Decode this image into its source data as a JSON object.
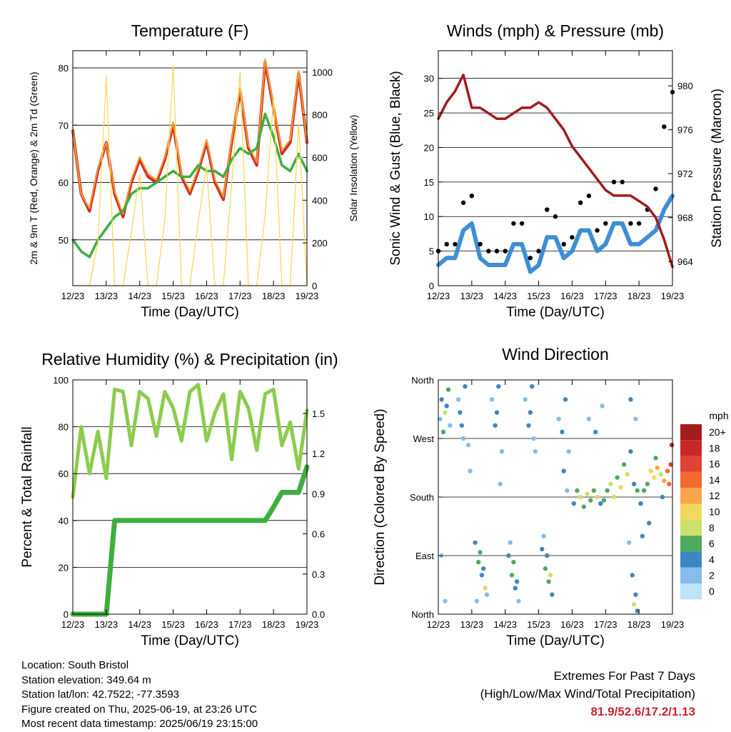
{
  "days": [
    "12/23",
    "13/23",
    "14/23",
    "15/23",
    "16/23",
    "17/23",
    "18/23",
    "19/23"
  ],
  "xlabel": "Time (Day/UTC)",
  "colors": {
    "temp2m": "#d42a26",
    "temp9m": "#f59a2e",
    "dew": "#3fae3f",
    "solar": "#f5dc5a",
    "sonic": "#3e8ed6",
    "gust": "#000000",
    "pressure": "#a01c1c",
    "rh": "#8ccc4e",
    "precip": "#3fae3f",
    "extremes": "#c4262e"
  },
  "chart_data": [
    {
      "type": "line",
      "title": "Temperature (F)",
      "ylabel": "2m & 9m T (Red, Orange) & 2m Td (Green)",
      "ylabel_right": "Solar Insolation (Yellow)",
      "xlabel": "Time (Day/UTC)",
      "x": [
        12.0,
        12.25,
        12.5,
        12.75,
        13.0,
        13.25,
        13.5,
        13.75,
        14.0,
        14.25,
        14.5,
        14.75,
        15.0,
        15.25,
        15.5,
        15.75,
        16.0,
        16.25,
        16.5,
        16.75,
        17.0,
        17.25,
        17.5,
        17.75,
        18.0,
        18.25,
        18.5,
        18.75,
        19.0
      ],
      "ylim": [
        42,
        83
      ],
      "yticks": [
        50,
        60,
        70,
        80
      ],
      "ylim_right": [
        0,
        1100
      ],
      "yticks_right": [
        0,
        200,
        400,
        600,
        800,
        1000
      ],
      "grid": "horizontal",
      "series": [
        {
          "key": "t2m",
          "axis": "left",
          "values": [
            69,
            58,
            55,
            62,
            67,
            58,
            54,
            60,
            64,
            61,
            60,
            64,
            70,
            61,
            58,
            62,
            67,
            60,
            57,
            67,
            76,
            66,
            63,
            81,
            73,
            65,
            67,
            79,
            67
          ]
        },
        {
          "key": "t9m",
          "axis": "left",
          "values": [
            69,
            58,
            55.5,
            62.5,
            67,
            58.5,
            54.5,
            60.5,
            64.5,
            61.5,
            60.5,
            64.5,
            70.5,
            61.5,
            58.5,
            62.5,
            67.5,
            60.5,
            57.5,
            67.5,
            76.5,
            66.5,
            63.5,
            81.5,
            73.5,
            65.5,
            67.5,
            79.5,
            67
          ]
        },
        {
          "key": "td2m",
          "axis": "left",
          "values": [
            50,
            48,
            47,
            50,
            52,
            54,
            55,
            58,
            59,
            59,
            60,
            61,
            62,
            61,
            61,
            63,
            62,
            62,
            61,
            64,
            66,
            65,
            66,
            72,
            68,
            63,
            62,
            65,
            62
          ]
        },
        {
          "key": "solar",
          "axis": "right",
          "values": [
            0,
            0,
            0,
            200,
            980,
            0,
            0,
            250,
            520,
            0,
            0,
            310,
            1030,
            0,
            0,
            300,
            560,
            0,
            0,
            480,
            1000,
            0,
            0,
            330,
            880,
            0,
            0,
            760,
            0
          ]
        }
      ]
    },
    {
      "type": "line",
      "title": "Winds (mph) & Pressure (mb)",
      "ylabel": "Sonic Wind & Gust (Blue, Black)",
      "ylabel_right": "Station Pressure (Maroon)",
      "xlabel": "Time (Day/UTC)",
      "x": [
        12.0,
        12.25,
        12.5,
        12.75,
        13.0,
        13.25,
        13.5,
        13.75,
        14.0,
        14.25,
        14.5,
        14.75,
        15.0,
        15.25,
        15.5,
        15.75,
        16.0,
        16.25,
        16.5,
        16.75,
        17.0,
        17.25,
        17.5,
        17.75,
        18.0,
        18.25,
        18.5,
        18.75,
        19.0
      ],
      "ylim": [
        0,
        34
      ],
      "yticks": [
        0,
        5,
        10,
        15,
        20,
        25,
        30
      ],
      "ylim_right": [
        961.8,
        983.2
      ],
      "yticks_right": [
        964,
        968,
        972,
        976,
        980
      ],
      "grid": "horizontal",
      "series": [
        {
          "key": "wind",
          "axis": "left",
          "values": [
            3,
            4,
            4,
            8,
            9,
            4,
            3,
            3,
            3,
            6,
            6,
            2,
            3,
            7,
            7,
            4,
            5,
            8,
            8,
            5,
            6,
            9,
            9,
            6,
            6,
            7,
            8,
            11,
            13
          ]
        },
        {
          "key": "gust",
          "axis": "left",
          "values": [
            5,
            6,
            6,
            12,
            13,
            6,
            5,
            5,
            5,
            9,
            9,
            4,
            5,
            11,
            10,
            6,
            7,
            12,
            13,
            8,
            9,
            15,
            15,
            9,
            9,
            11,
            14,
            23,
            28
          ]
        },
        {
          "key": "pressure",
          "axis": "right",
          "values": [
            977,
            978.5,
            979.5,
            981,
            978,
            978,
            977.5,
            977,
            977,
            977.5,
            978,
            978,
            978.5,
            978,
            977,
            976,
            974.5,
            973.5,
            972.5,
            971.5,
            970.5,
            970,
            970,
            970,
            969.5,
            969,
            968,
            966,
            963.5
          ]
        }
      ]
    },
    {
      "type": "line",
      "title": "Relative Humidity (%) & Precipitation (in)",
      "ylabel": "Percent & Total Rainfall",
      "xlabel": "Time (Day/UTC)",
      "x": [
        12.0,
        12.25,
        12.5,
        12.75,
        13.0,
        13.25,
        13.5,
        13.75,
        14.0,
        14.25,
        14.5,
        14.75,
        15.0,
        15.25,
        15.5,
        15.75,
        16.0,
        16.25,
        16.5,
        16.75,
        17.0,
        17.25,
        17.5,
        17.75,
        18.0,
        18.25,
        18.5,
        18.75,
        19.0
      ],
      "ylim": [
        0,
        100
      ],
      "yticks": [
        0,
        20,
        40,
        60,
        80,
        100
      ],
      "ylim_right": [
        0,
        1.75
      ],
      "yticks_right": [
        0.0,
        0.3,
        0.6,
        0.9,
        1.2,
        1.5
      ],
      "ytick_labels_right": [
        "0.0",
        "0.3",
        "0.6",
        "0.9",
        "1.2",
        "1.5"
      ],
      "grid": "horizontal",
      "series": [
        {
          "key": "rh",
          "axis": "left",
          "values": [
            50,
            80,
            60,
            78,
            58,
            96,
            95,
            72,
            95,
            92,
            76,
            95,
            88,
            74,
            95,
            98,
            74,
            86,
            94,
            66,
            95,
            88,
            70,
            94,
            96,
            72,
            82,
            62,
            87
          ]
        },
        {
          "key": "precip",
          "axis": "right",
          "values": [
            0,
            0,
            0,
            0,
            0,
            0.7,
            0.7,
            0.7,
            0.7,
            0.7,
            0.7,
            0.7,
            0.7,
            0.7,
            0.7,
            0.7,
            0.7,
            0.7,
            0.7,
            0.7,
            0.7,
            0.7,
            0.7,
            0.7,
            0.8,
            0.91,
            0.91,
            0.91,
            1.1
          ]
        }
      ]
    },
    {
      "type": "scatter",
      "title": "Wind Direction",
      "ylabel": "Direction (Colored By Speed)",
      "xlabel": "Time (Day/UTC)",
      "ylim": [
        0,
        360
      ],
      "yticks": [
        0,
        90,
        180,
        270,
        360
      ],
      "ytick_labels": [
        "North",
        "East",
        "South",
        "West",
        "North"
      ],
      "grid": "horizontal",
      "legend_title": "mph",
      "legend_labels": [
        "20+",
        "18",
        "16",
        "14",
        "12",
        "10",
        "8",
        "6",
        "4",
        "2",
        "0"
      ],
      "legend_colors": [
        "#a31c1c",
        "#c92828",
        "#e04434",
        "#f26a30",
        "#f9a54a",
        "#f2d85a",
        "#cde06a",
        "#4daa5e",
        "#3d86c4",
        "#85bde9",
        "#bde4f7"
      ],
      "legend_placement": "right",
      "points": [
        [
          12.05,
          300,
          2
        ],
        [
          12.1,
          330,
          4
        ],
        [
          12.15,
          280,
          6
        ],
        [
          12.2,
          310,
          7
        ],
        [
          12.25,
          320,
          3
        ],
        [
          12.3,
          345,
          5
        ],
        [
          12.35,
          290,
          2
        ],
        [
          12.1,
          90,
          1
        ],
        [
          12.2,
          20,
          2
        ],
        [
          12.6,
          330,
          2
        ],
        [
          12.7,
          290,
          4
        ],
        [
          12.8,
          350,
          3
        ],
        [
          12.9,
          260,
          2
        ],
        [
          12.95,
          220,
          1
        ],
        [
          12.65,
          310,
          3
        ],
        [
          12.75,
          270,
          2
        ],
        [
          13.1,
          110,
          3
        ],
        [
          13.2,
          80,
          6
        ],
        [
          13.3,
          60,
          4
        ],
        [
          13.4,
          40,
          7
        ],
        [
          13.25,
          95,
          5
        ],
        [
          13.35,
          70,
          3
        ],
        [
          13.15,
          20,
          2
        ],
        [
          13.45,
          30,
          1
        ],
        [
          13.6,
          330,
          2
        ],
        [
          13.7,
          290,
          4
        ],
        [
          13.8,
          350,
          3
        ],
        [
          13.9,
          250,
          2
        ],
        [
          13.75,
          310,
          3
        ],
        [
          13.85,
          200,
          1
        ],
        [
          14.1,
          90,
          3
        ],
        [
          14.2,
          60,
          5
        ],
        [
          14.3,
          40,
          4
        ],
        [
          14.4,
          20,
          2
        ],
        [
          14.25,
          80,
          6
        ],
        [
          14.15,
          110,
          2
        ],
        [
          14.35,
          50,
          3
        ],
        [
          14.6,
          330,
          2
        ],
        [
          14.7,
          290,
          4
        ],
        [
          14.8,
          350,
          3
        ],
        [
          14.9,
          250,
          2
        ],
        [
          14.75,
          310,
          3
        ],
        [
          14.85,
          270,
          1
        ],
        [
          15.1,
          100,
          3
        ],
        [
          15.2,
          70,
          6
        ],
        [
          15.3,
          50,
          5
        ],
        [
          15.4,
          30,
          3
        ],
        [
          15.25,
          90,
          4
        ],
        [
          15.15,
          120,
          2
        ],
        [
          15.35,
          60,
          7
        ],
        [
          15.6,
          300,
          2
        ],
        [
          15.7,
          280,
          4
        ],
        [
          15.8,
          330,
          3
        ],
        [
          15.9,
          250,
          2
        ],
        [
          15.75,
          220,
          3
        ],
        [
          15.85,
          190,
          1
        ],
        [
          16.05,
          170,
          4
        ],
        [
          16.15,
          190,
          6
        ],
        [
          16.25,
          180,
          8
        ],
        [
          16.35,
          165,
          5
        ],
        [
          16.45,
          185,
          7
        ],
        [
          16.55,
          175,
          6
        ],
        [
          16.65,
          190,
          5
        ],
        [
          16.75,
          180,
          8
        ],
        [
          16.85,
          170,
          4
        ],
        [
          16.95,
          175,
          6
        ],
        [
          16.5,
          300,
          2
        ],
        [
          16.7,
          280,
          3
        ],
        [
          16.9,
          320,
          2
        ],
        [
          17.05,
          190,
          5
        ],
        [
          17.15,
          200,
          7
        ],
        [
          17.25,
          180,
          8
        ],
        [
          17.35,
          210,
          6
        ],
        [
          17.45,
          195,
          9
        ],
        [
          17.55,
          230,
          6
        ],
        [
          17.65,
          215,
          7
        ],
        [
          17.75,
          250,
          3
        ],
        [
          17.85,
          200,
          4
        ],
        [
          17.95,
          190,
          6
        ],
        [
          17.7,
          110,
          2
        ],
        [
          17.8,
          60,
          4
        ],
        [
          17.9,
          30,
          3
        ],
        [
          17.85,
          15,
          8
        ],
        [
          17.95,
          5,
          4
        ],
        [
          17.75,
          330,
          3
        ],
        [
          17.9,
          300,
          2
        ],
        [
          18.05,
          170,
          3
        ],
        [
          18.15,
          190,
          5
        ],
        [
          18.25,
          200,
          6
        ],
        [
          18.35,
          220,
          9
        ],
        [
          18.45,
          210,
          10
        ],
        [
          18.55,
          225,
          11
        ],
        [
          18.65,
          215,
          8
        ],
        [
          18.75,
          205,
          12
        ],
        [
          18.85,
          220,
          14
        ],
        [
          18.95,
          230,
          16
        ],
        [
          18.98,
          260,
          18
        ],
        [
          18.1,
          120,
          3
        ],
        [
          18.3,
          140,
          4
        ],
        [
          18.5,
          240,
          6
        ],
        [
          18.7,
          180,
          4
        ],
        [
          18.9,
          200,
          13
        ]
      ]
    }
  ],
  "info": {
    "location": "Location: South Bristol",
    "elevation": "Station elevation: 349.64 m",
    "latlon": "Station lat/lon: 42.7522; -77.3593",
    "created": "Figure created on Thu, 2025-06-19, at 23:26 UTC",
    "recent": "Most recent data timestamp: 2025/06/19 23:15:00"
  },
  "extremes": {
    "title": "Extremes For Past 7 Days",
    "subtitle": "(High/Low/Max Wind/Total Precipitation)",
    "values": "81.9/52.6/17.2/1.13"
  }
}
